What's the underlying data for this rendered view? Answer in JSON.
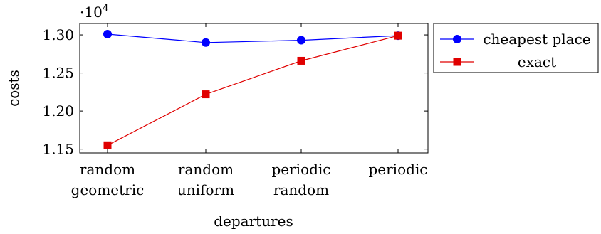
{
  "chart_data": {
    "type": "line",
    "categories": [
      [
        "random",
        "geometric"
      ],
      [
        "random",
        "uniform"
      ],
      [
        "periodic",
        "random"
      ],
      [
        "periodic"
      ]
    ],
    "xlabel": "departures",
    "ylabel": "costs",
    "y_multiplier": "·10",
    "y_multiplier_exp": "4",
    "ylim": [
      1.145,
      1.315
    ],
    "yticks": [
      "1.15",
      "1.20",
      "1.25",
      "1.30"
    ],
    "ytick_values": [
      1.15,
      1.2,
      1.25,
      1.3
    ],
    "grid": false,
    "legend": "outside-right-top",
    "series": [
      {
        "name": "cheapest place",
        "color": "#0000ff",
        "marker": "circle",
        "values": [
          1.301,
          1.29,
          1.293,
          1.299
        ]
      },
      {
        "name": "exact",
        "color": "#e00000",
        "marker": "square",
        "values": [
          1.155,
          1.222,
          1.266,
          1.299
        ]
      }
    ]
  }
}
